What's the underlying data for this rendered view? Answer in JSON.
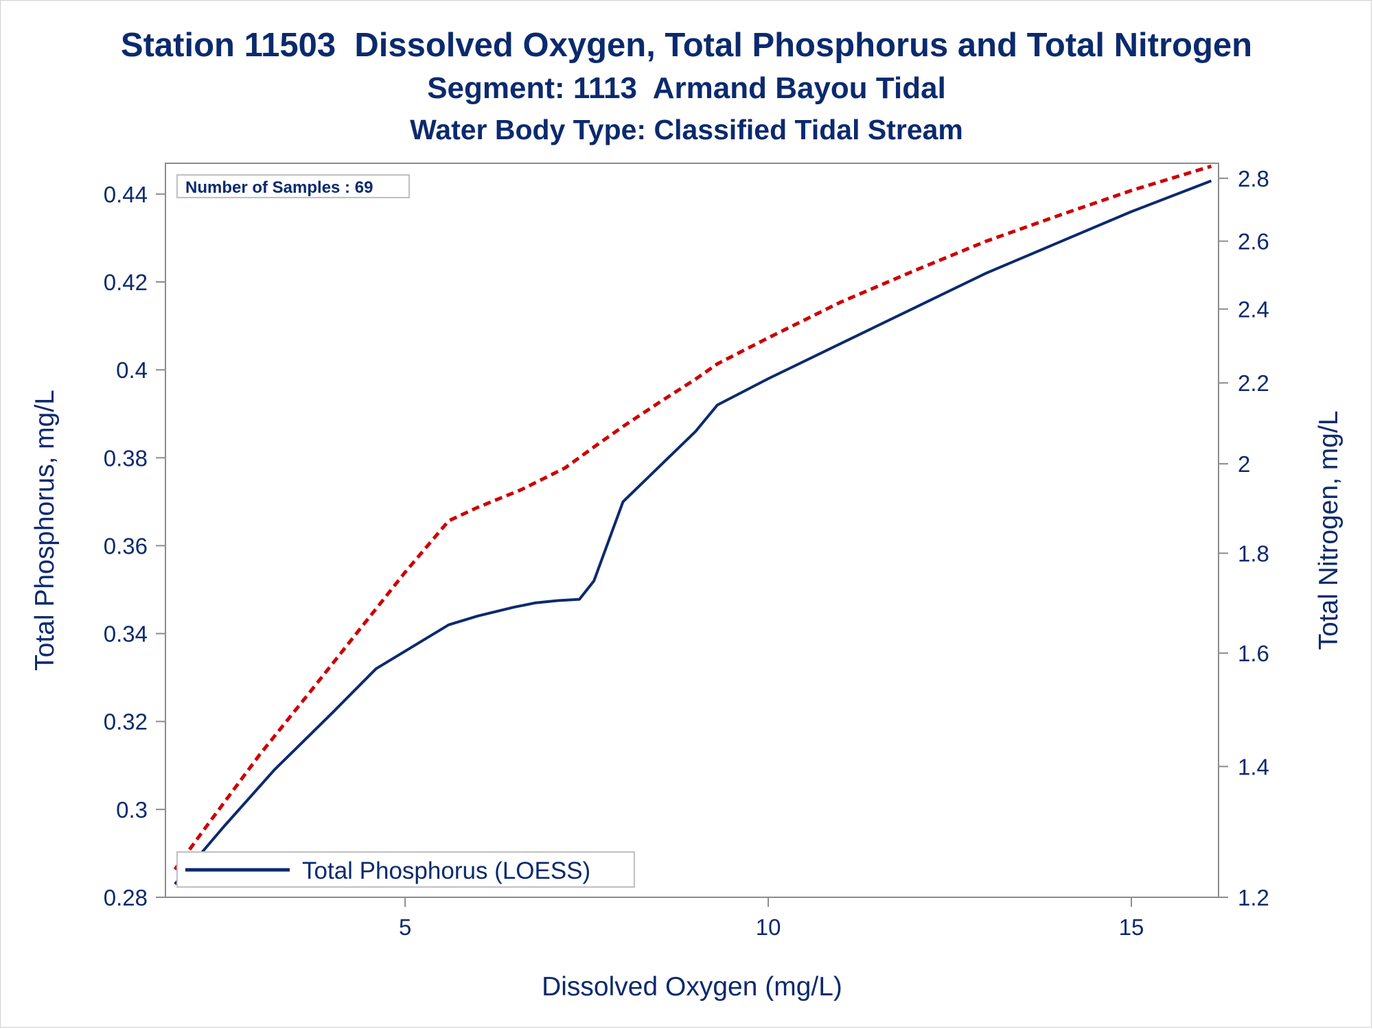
{
  "titles": {
    "line1": "Station 11503  Dissolved Oxygen, Total Phosphorus and Total Nitrogen",
    "line2": "Segment: 1113  Armand Bayou Tidal",
    "line3": "Water Body Type: Classified Tidal Stream"
  },
  "colors": {
    "text": "#0b2a6e",
    "phosphorus": "#0b2a6e",
    "nitrogen": "#cc0000",
    "axis": "#8c8c8c"
  },
  "chart_data": {
    "type": "line",
    "xlabel": "Dissolved Oxygen (mg/L)",
    "ylabel": "Total Phosphorus, mg/L",
    "y2label": "Total Nitrogen, mg/L",
    "xlim": [
      1.7,
      16.2
    ],
    "ylim": [
      0.28,
      0.447
    ],
    "y2lim": [
      1.2,
      2.85
    ],
    "y2_scale": "log",
    "x_ticks": [
      5,
      10,
      15
    ],
    "y_ticks": [
      0.28,
      0.3,
      0.32,
      0.34,
      0.36,
      0.38,
      0.4,
      0.42,
      0.44
    ],
    "y2_ticks": [
      1.2,
      1.4,
      1.6,
      1.8,
      2,
      2.2,
      2.4,
      2.6,
      2.8
    ],
    "annotation": "Number of Samples : 69",
    "legend": {
      "placement": "bottom-left",
      "entries": [
        "Total Phosphorus (LOESS)"
      ]
    },
    "series": [
      {
        "name": "Total Phosphorus (LOESS)",
        "axis": "left",
        "style": "solid",
        "x": [
          1.83,
          2.5,
          3.2,
          4.0,
          4.6,
          5.1,
          5.6,
          6.0,
          6.5,
          6.8,
          7.1,
          7.4,
          7.6,
          8.0,
          8.5,
          9.0,
          9.3,
          10.0,
          11.0,
          12.0,
          13.0,
          14.0,
          15.0,
          16.1
        ],
        "values": [
          0.283,
          0.296,
          0.309,
          0.322,
          0.332,
          0.337,
          0.342,
          0.344,
          0.346,
          0.347,
          0.3475,
          0.3478,
          0.352,
          0.37,
          0.378,
          0.386,
          0.392,
          0.398,
          0.406,
          0.414,
          0.422,
          0.429,
          0.436,
          0.443
        ]
      },
      {
        "name": "Total Nitrogen",
        "axis": "right",
        "style": "dashed",
        "x": [
          1.83,
          2.3,
          3.0,
          3.7,
          4.4,
          5.0,
          5.6,
          6.0,
          6.6,
          7.2,
          7.6,
          8.0,
          8.5,
          9.0,
          9.3,
          10.0,
          11.0,
          12.0,
          13.0,
          14.0,
          15.0,
          16.1
        ],
        "values": [
          1.24,
          1.31,
          1.42,
          1.53,
          1.65,
          1.76,
          1.87,
          1.9,
          1.94,
          1.99,
          2.04,
          2.09,
          2.15,
          2.21,
          2.25,
          2.32,
          2.42,
          2.51,
          2.6,
          2.68,
          2.76,
          2.84
        ]
      }
    ]
  }
}
